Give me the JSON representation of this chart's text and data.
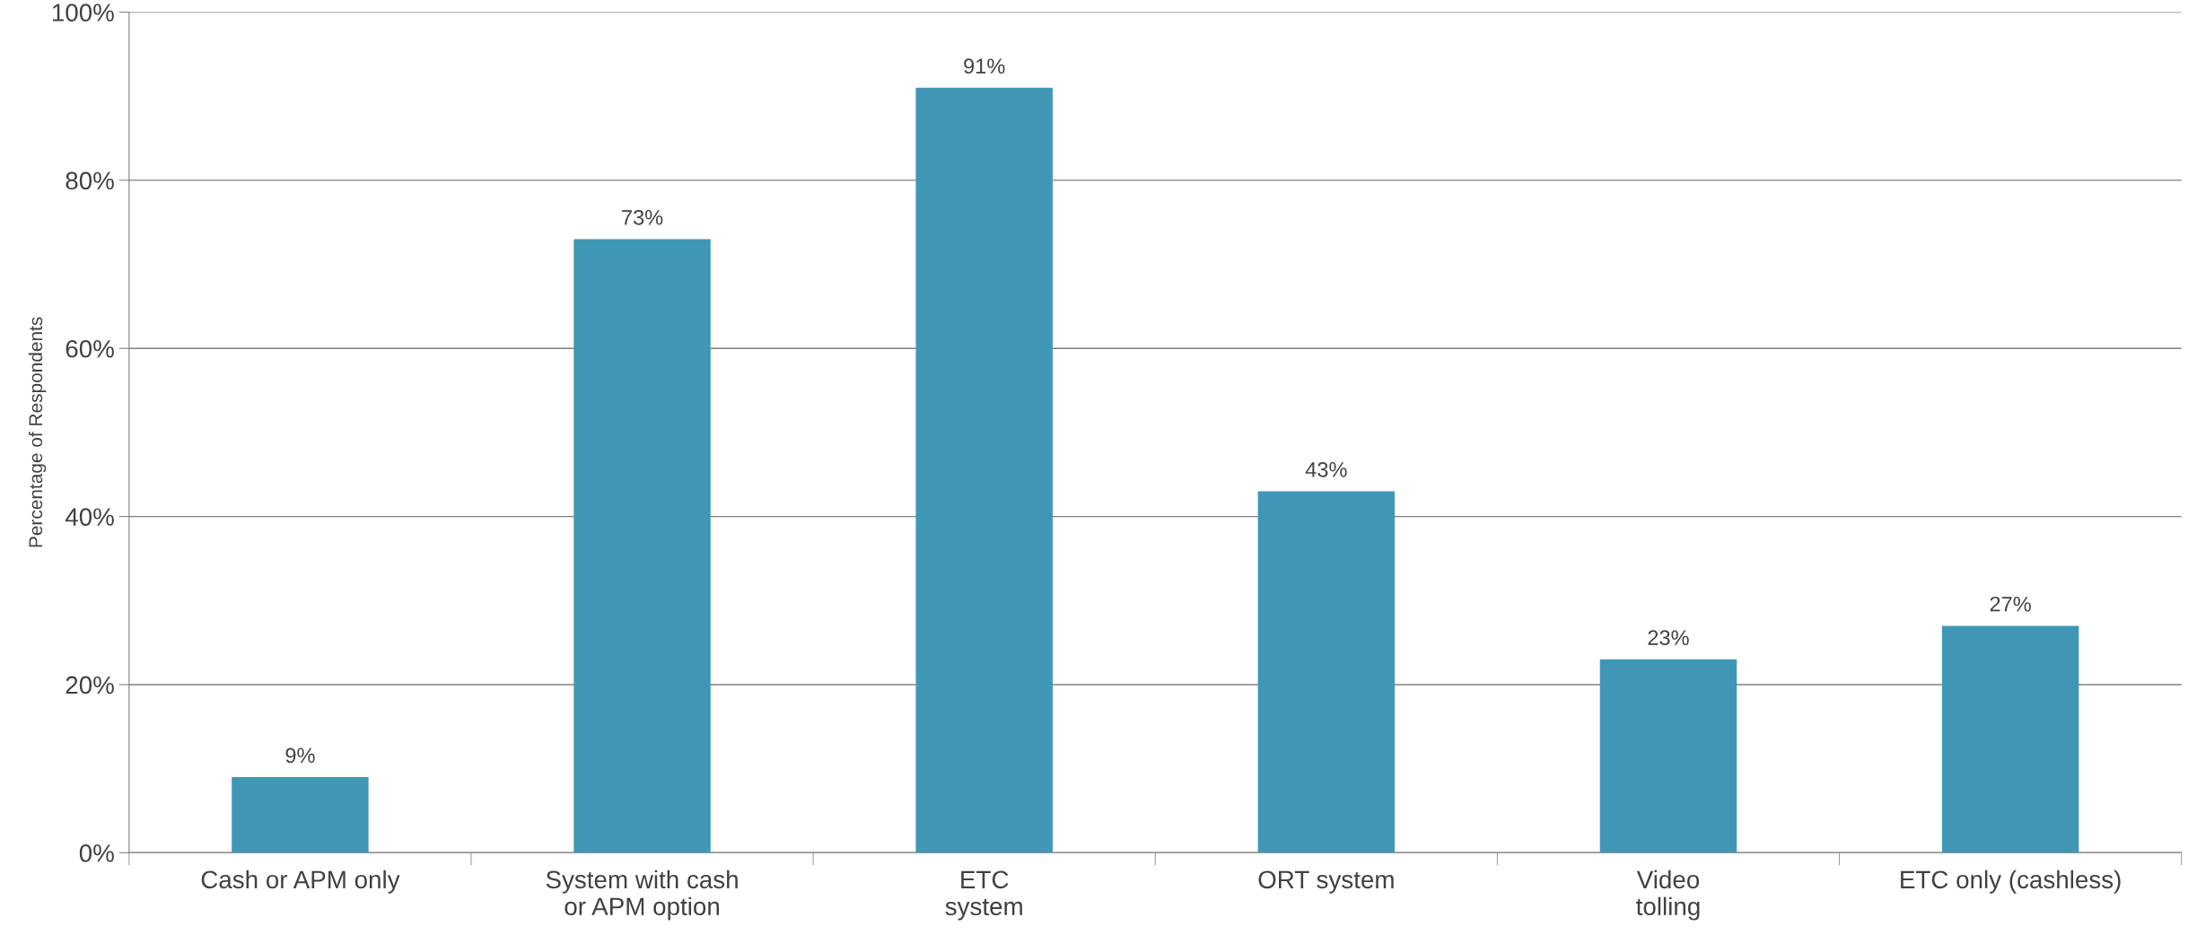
{
  "chart_data": {
    "type": "bar",
    "ylabel": "Percentage of Respondents",
    "categories": [
      "Cash or APM only",
      "System with cash\nor APM option",
      "ETC\nsystem",
      "ORT system",
      "Video\ntolling",
      "ETC only (cashless)"
    ],
    "values": [
      9,
      73,
      91,
      43,
      23,
      27
    ],
    "value_labels": [
      "9%",
      "73%",
      "91%",
      "43%",
      "23%",
      "27%"
    ],
    "color": "#4097b5",
    "ylim": [
      0,
      100
    ],
    "yticks": [
      {
        "value": 0,
        "label": "0%"
      },
      {
        "value": 20,
        "label": "20%"
      },
      {
        "value": 40,
        "label": "40%"
      },
      {
        "value": 60,
        "label": "60%"
      },
      {
        "value": 80,
        "label": "80%"
      },
      {
        "value": 100,
        "label": "100%"
      }
    ],
    "grid": "y",
    "legend": false
  }
}
